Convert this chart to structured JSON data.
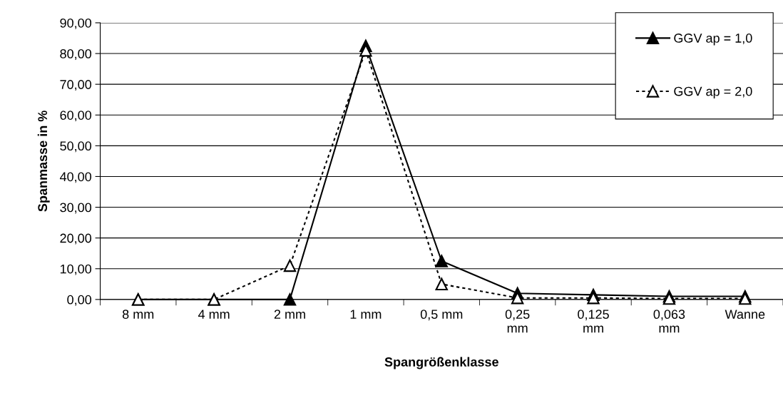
{
  "chart_data": {
    "type": "line",
    "xlabel": "Spangrößenklasse",
    "ylabel": "Spanmasse in %",
    "categories": [
      "8 mm",
      "4 mm",
      "2 mm",
      "1 mm",
      "0,5 mm",
      "0,25 mm",
      "0,125 mm",
      "0,063 mm",
      "Wanne"
    ],
    "series": [
      {
        "name": "GGV ap = 1,0",
        "color": "#000000",
        "line_style": "solid",
        "values": [
          0,
          0,
          0,
          82.5,
          12.5,
          2,
          1.5,
          1,
          1
        ]
      },
      {
        "name": "GGV ap = 2,0",
        "color": "#000000",
        "line_style": "dotted",
        "values": [
          0,
          0,
          11,
          81,
          5,
          0.5,
          0.5,
          0.3,
          0.3
        ]
      }
    ],
    "ylim": [
      0,
      90
    ],
    "yticks": [
      {
        "value": 0,
        "label": "0,00"
      },
      {
        "value": 10,
        "label": "10,00"
      },
      {
        "value": 20,
        "label": "20,00"
      },
      {
        "value": 30,
        "label": "30,00"
      },
      {
        "value": 40,
        "label": "40,00"
      },
      {
        "value": 50,
        "label": "50,00"
      },
      {
        "value": 60,
        "label": "60,00"
      },
      {
        "value": 70,
        "label": "70,00"
      },
      {
        "value": 80,
        "label": "80,00"
      },
      {
        "value": 90,
        "label": "90,00"
      }
    ],
    "grid": "y",
    "legend": "top right",
    "marker": "triangle"
  }
}
